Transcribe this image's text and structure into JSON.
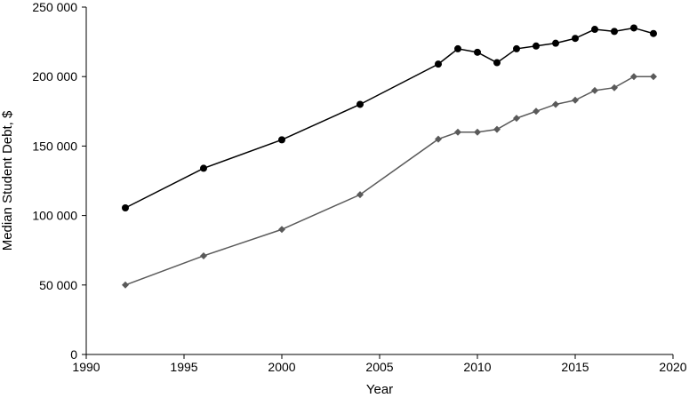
{
  "chart_data": {
    "type": "line",
    "title": "",
    "xlabel": "Year",
    "ylabel": "Median Student Debt, $",
    "xlim": [
      1990,
      2020
    ],
    "ylim": [
      0,
      250000
    ],
    "x_ticks": [
      "1990",
      "1995",
      "2000",
      "2005",
      "2010",
      "2015",
      "2020"
    ],
    "y_ticks": [
      "0",
      "50 000",
      "100 000",
      "150 000",
      "200 000",
      "250 000"
    ],
    "grid": false,
    "legend": "none",
    "series": [
      {
        "color": "#000000",
        "marker": "circle",
        "points": [
          [
            1992,
            105500
          ],
          [
            1996,
            134000
          ],
          [
            2000,
            154500
          ],
          [
            2004,
            180000
          ],
          [
            2008,
            209000
          ],
          [
            2009,
            220000
          ],
          [
            2010,
            217500
          ],
          [
            2011,
            210000
          ],
          [
            2012,
            220000
          ],
          [
            2013,
            222000
          ],
          [
            2014,
            224000
          ],
          [
            2015,
            227500
          ],
          [
            2016,
            234000
          ],
          [
            2017,
            232500
          ],
          [
            2018,
            235000
          ],
          [
            2019,
            231000
          ]
        ]
      },
      {
        "color": "#5a5a5a",
        "marker": "diamond",
        "points": [
          [
            1992,
            50000
          ],
          [
            1996,
            71000
          ],
          [
            2000,
            90000
          ],
          [
            2004,
            115000
          ],
          [
            2008,
            155000
          ],
          [
            2009,
            160000
          ],
          [
            2010,
            160000
          ],
          [
            2011,
            162000
          ],
          [
            2012,
            170000
          ],
          [
            2013,
            175000
          ],
          [
            2014,
            180000
          ],
          [
            2015,
            183000
          ],
          [
            2016,
            190000
          ],
          [
            2017,
            192000
          ],
          [
            2018,
            200000
          ],
          [
            2019,
            200000
          ]
        ]
      }
    ]
  }
}
